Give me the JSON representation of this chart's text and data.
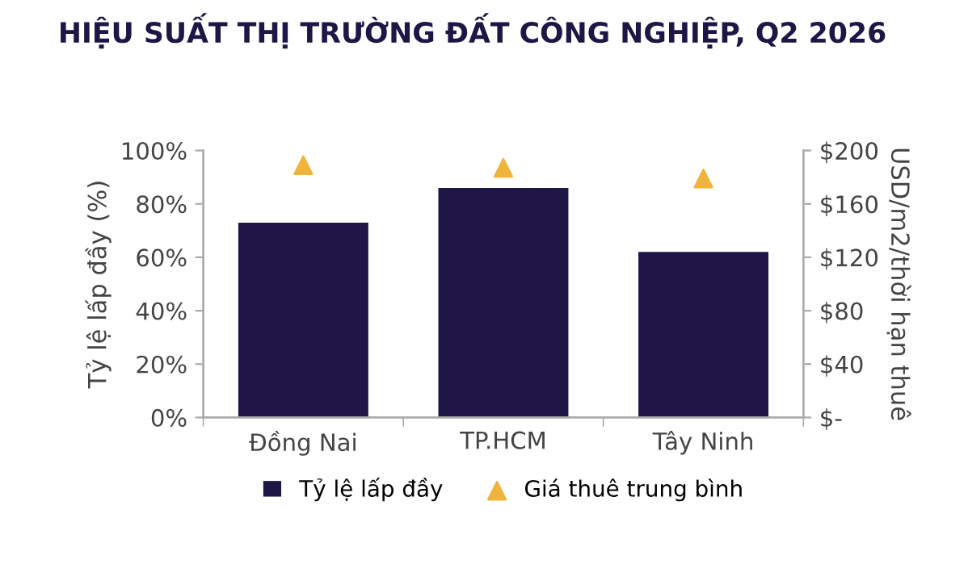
{
  "chart_data": {
    "type": "bar",
    "title": "HIỆU SUẤT THỊ TRƯỜNG ĐẤT CÔNG NGHIỆP, Q2 2026",
    "categories": [
      "Đồng Nai",
      "TP.HCM",
      "Tây Ninh"
    ],
    "series": [
      {
        "name": "Tỷ lệ lấp đầy",
        "color": "#1f1646",
        "values": [
          73,
          86,
          62
        ]
      },
      {
        "name": "Giá thuê trung bình",
        "type": "scatter",
        "axis": "y2",
        "color": "#f0b43c",
        "values": [
          189,
          187,
          179
        ]
      }
    ],
    "ylabel": "Tỷ lệ lấp đầy (%)",
    "y2label": "USD/m2/thời hạn thuê",
    "ylim": [
      0,
      100
    ],
    "yticks": [
      {
        "value": 0,
        "label": "0%"
      },
      {
        "value": 20,
        "label": "20%"
      },
      {
        "value": 40,
        "label": "40%"
      },
      {
        "value": 60,
        "label": "60%"
      },
      {
        "value": 80,
        "label": "80%"
      },
      {
        "value": 100,
        "label": "100%"
      }
    ],
    "y2lim": [
      0,
      200
    ],
    "y2ticks": [
      {
        "value": 0,
        "label": "$-"
      },
      {
        "value": 40,
        "label": "$40"
      },
      {
        "value": 80,
        "label": "$80"
      },
      {
        "value": 120,
        "label": "$120"
      },
      {
        "value": 160,
        "label": "$160"
      },
      {
        "value": 200,
        "label": "$200"
      }
    ],
    "marker": "triangle",
    "grid": false,
    "legend": "bottom"
  }
}
